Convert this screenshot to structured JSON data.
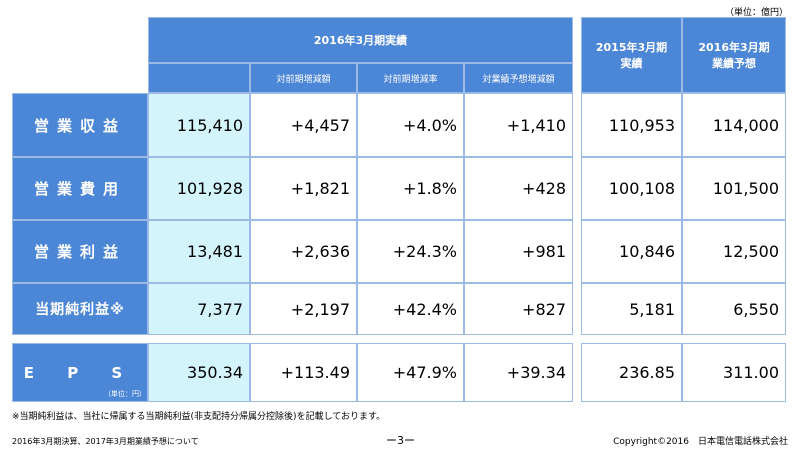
{
  "unit_note": "（単位：億円）",
  "header": {
    "group_title": "2016年3月期実績",
    "sub_yoy_amount": "対前期増減額",
    "sub_yoy_rate": "対前期増減率",
    "sub_vs_forecast": "対業績予想増減額",
    "prev_year_title_line1": "2015年3月期",
    "prev_year_title_line2": "実績",
    "forecast_title_line1": "2016年3月期",
    "forecast_title_line2": "業績予想"
  },
  "rows": [
    {
      "label": "営業収益",
      "actual": "115,410",
      "yoy_amount": "+4,457",
      "yoy_rate": "+4.0%",
      "vs_forecast": "+1,410",
      "prev_year": "110,953",
      "forecast": "114,000"
    },
    {
      "label": "営業費用",
      "actual": "101,928",
      "yoy_amount": "+1,821",
      "yoy_rate": "+1.8%",
      "vs_forecast": "+428",
      "prev_year": "100,108",
      "forecast": "101,500"
    },
    {
      "label": "営業利益",
      "actual": "13,481",
      "yoy_amount": "+2,636",
      "yoy_rate": "+24.3%",
      "vs_forecast": "+981",
      "prev_year": "10,846",
      "forecast": "12,500"
    },
    {
      "label": "当期純利益※",
      "actual": "7,377",
      "yoy_amount": "+2,197",
      "yoy_rate": "+42.4%",
      "vs_forecast": "+827",
      "prev_year": "5,181",
      "forecast": "6,550"
    }
  ],
  "eps": {
    "label": "E P S",
    "unit": "（単位：円）",
    "actual": "350.34",
    "yoy_amount": "+113.49",
    "yoy_rate": "+47.9%",
    "vs_forecast": "+39.34",
    "prev_year": "236.85",
    "forecast": "311.00"
  },
  "footnote": "※当期純利益は、当社に帰属する当期純利益(非支配持分帰属分控除後)を記載しております。",
  "footer": {
    "left": "2016年3月期決算、2017年3月期業績予想について",
    "page": "ー3ー",
    "right": "Copyright©2016　日本電信電話株式会社"
  }
}
